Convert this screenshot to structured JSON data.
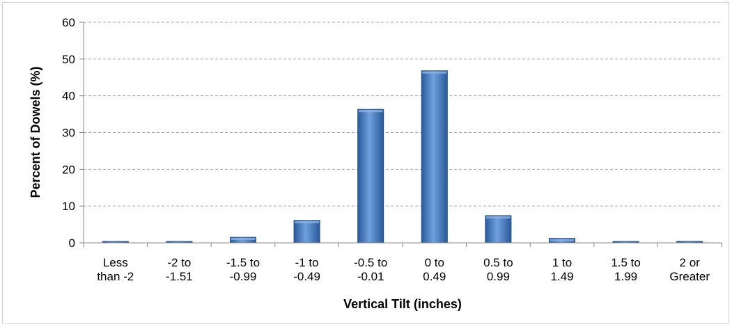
{
  "chart_data": {
    "type": "bar",
    "title": "",
    "xlabel": "Vertical Tilt (inches)",
    "ylabel": "Percent of Dowels (%)",
    "ylim": [
      0,
      60
    ],
    "yticks": [
      0,
      10,
      20,
      30,
      40,
      50,
      60
    ],
    "grid": true,
    "categories": [
      [
        "Less",
        "than -2"
      ],
      [
        "-2 to",
        "-1.51"
      ],
      [
        "-1.5 to",
        "-0.99"
      ],
      [
        "-1 to",
        "-0.49"
      ],
      [
        "-0.5 to",
        "-0.01"
      ],
      [
        "0 to",
        "0.49"
      ],
      [
        "0.5 to",
        "0.99"
      ],
      [
        "1 to",
        "1.49"
      ],
      [
        "1.5 to",
        "1.99"
      ],
      [
        "2 or",
        "Greater"
      ]
    ],
    "values": [
      0.2,
      0.2,
      1.5,
      6.1,
      36.3,
      46.8,
      7.4,
      1.2,
      0.2,
      0.4
    ],
    "colors": {
      "bar": "#4a7ebb",
      "bar_dark": "#1f4e8c",
      "bar_light": "#8fb4e3",
      "grid": "#a6a6a6",
      "axis": "#868686"
    }
  }
}
